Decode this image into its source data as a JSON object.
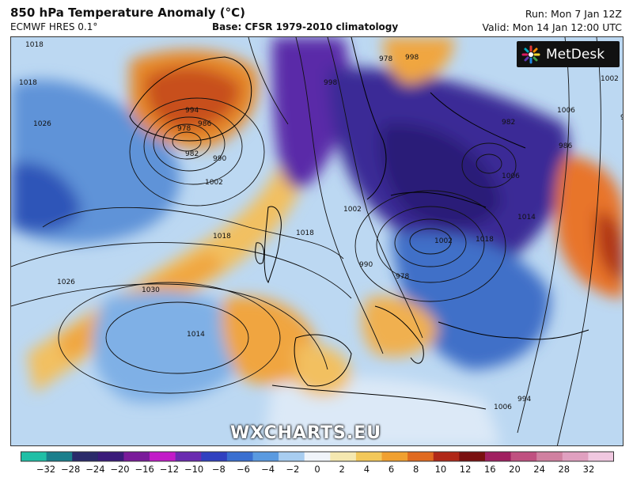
{
  "header": {
    "title": "850 hPa Temperature Anomaly (°C)",
    "model": "ECMWF HRES 0.1°",
    "base": "Base: CFSR 1979-2010 climatology",
    "run": "Run: Mon 7 Jan 12Z",
    "valid": "Valid: Mon 14 Jan 12:00 UTC"
  },
  "logo": {
    "text": "MetDesk"
  },
  "watermark": "WXCHARTS.EU",
  "isobar_labels": [
    "1018",
    "1018",
    "1026",
    "994",
    "978",
    "986",
    "982",
    "990",
    "1002",
    "1018",
    "1026",
    "1030",
    "1014",
    "1018",
    "1002",
    "998",
    "978",
    "982",
    "986",
    "1006",
    "1014",
    "1018",
    "1002",
    "978",
    "994",
    "990",
    "982",
    "1002",
    "1006",
    "1006",
    "998"
  ],
  "legend": {
    "ticks": [
      "−32",
      "−28",
      "−24",
      "−20",
      "−16",
      "−12",
      "−10",
      "−8",
      "−6",
      "−4",
      "−2",
      "0",
      "2",
      "4",
      "6",
      "8",
      "10",
      "12",
      "16",
      "20",
      "24",
      "28",
      "32"
    ],
    "colors": [
      "#1fbfa6",
      "#1a7f8c",
      "#2a2a6a",
      "#3a1a7a",
      "#7a1a9a",
      "#c21ac8",
      "#6a2ab0",
      "#3040c0",
      "#3a6fd0",
      "#5a9ae0",
      "#a8cdf0",
      "#f0f4fa",
      "#f5e8b0",
      "#f3c85a",
      "#f0a030",
      "#e06a20",
      "#b02818",
      "#7a1010",
      "#a02060",
      "#c05080",
      "#d080a0",
      "#e0a0c0",
      "#f0c8e0"
    ]
  }
}
